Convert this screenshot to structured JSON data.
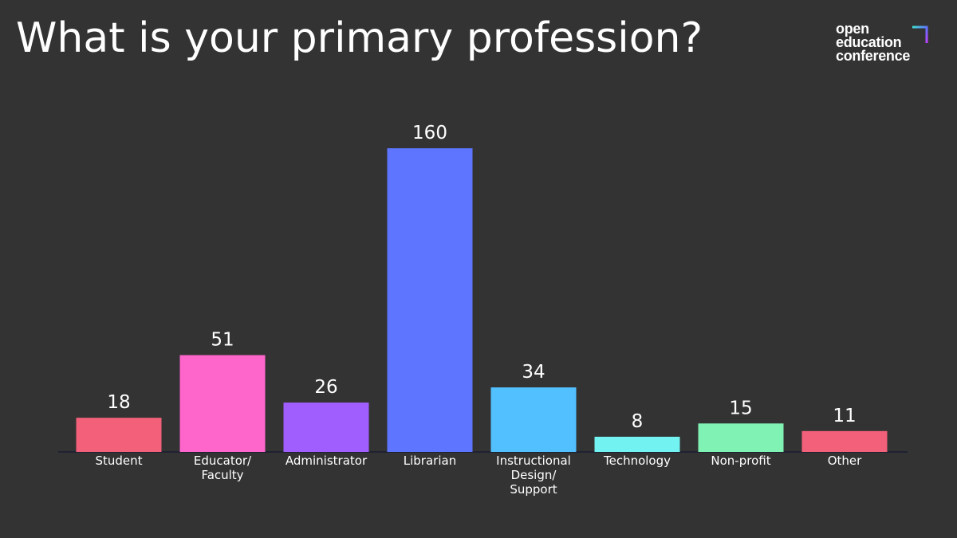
{
  "title": "What is your primary profession?",
  "logo": [
    "open",
    "education",
    "conference"
  ],
  "chart_data": {
    "type": "bar",
    "categories": [
      "Student",
      "Educator/ Faculty",
      "Administrator",
      "Librarian",
      "Instructional Design/ Support",
      "Technology",
      "Non-profit",
      "Other"
    ],
    "values": [
      18,
      51,
      26,
      160,
      34,
      8,
      15,
      11
    ],
    "colors": [
      "#f2607a",
      "#ff66cc",
      "#a15eff",
      "#5e75ff",
      "#52c0ff",
      "#73f2f2",
      "#80f2b3",
      "#f2607a"
    ]
  }
}
